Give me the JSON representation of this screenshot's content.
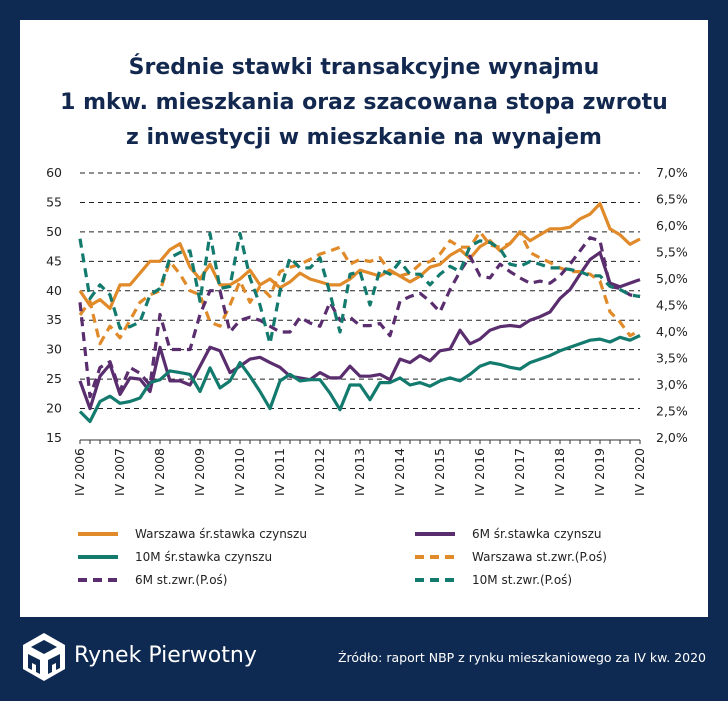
{
  "title": [
    "Średnie stawki transakcyjne wynajmu",
    "1 mkw. mieszkania oraz szacowana stopa zwrotu",
    "z inwestycji w mieszkanie na wynajem"
  ],
  "brand": "Rynek Pierwotny",
  "source": "Źródło: raport NBP z rynku mieszkaniowego za IV kw. 2020",
  "chart_data": {
    "type": "line",
    "x_tick_labels": [
      "IV 2006",
      "IV 2007",
      "IV 2008",
      "IV 2009",
      "IV 2010",
      "IV 2011",
      "IV 2012",
      "IV 2013",
      "IV 2014",
      "IV 2015",
      "IV 2016",
      "IV 2017",
      "IV 2018",
      "IV 2019",
      "IV 2020"
    ],
    "x_range": [
      "IV 2006",
      "IV 2020"
    ],
    "x_frequency": "quarterly",
    "y_left": {
      "range": [
        15,
        60
      ],
      "ticks": [
        "15",
        "20",
        "25",
        "30",
        "35",
        "40",
        "45",
        "50",
        "55",
        "60"
      ]
    },
    "y_right": {
      "range": [
        2.0,
        7.0
      ],
      "ticks": [
        "2,0%",
        "2,5%",
        "3,0%",
        "3,5%",
        "4,0%",
        "4,5%",
        "5,0%",
        "5,5%",
        "6,0%",
        "6,5%",
        "7,0%"
      ]
    },
    "grid": "horizontal dashed",
    "legend_position": "bottom",
    "series": [
      {
        "name": "Warszawa śr.stawka czynszu",
        "axis": "left",
        "style": "solid",
        "color": "#e08a2a",
        "values": [
          40,
          37.5,
          38.5,
          37,
          41,
          41,
          43,
          45,
          45,
          47,
          48,
          44,
          42,
          44.5,
          41,
          41,
          42,
          43.5,
          41,
          42,
          40.5,
          41.5,
          43,
          42,
          41.5,
          41,
          41,
          42,
          43.5,
          43,
          42.5,
          43.5,
          42.5,
          41.5,
          42.5,
          44,
          44.5,
          46,
          47,
          45.5,
          47.5,
          48.5,
          46.8,
          48,
          50,
          48.5,
          49.5,
          50.5,
          50.5,
          50.8,
          52.2,
          53,
          54.8,
          50.5,
          49.5,
          47.9,
          48.8
        ]
      },
      {
        "name": "6M śr.stawka czynszu",
        "axis": "left",
        "style": "solid",
        "color": "#5a2d6e",
        "values": [
          24.7,
          20,
          25.5,
          27.5,
          22.4,
          25.2,
          25,
          22.9,
          30.4,
          24.7,
          24.7,
          24,
          27.2,
          30.4,
          29.8,
          26.1,
          27.2,
          28.4,
          28.7,
          27.8,
          27,
          25.5,
          25.2,
          24.9,
          26.1,
          25.2,
          25.2,
          27.2,
          25.5,
          25.5,
          25.8,
          24.9,
          28.4,
          27.8,
          29,
          28.1,
          29.8,
          30.1,
          33.3,
          31,
          31.8,
          33.3,
          33.9,
          34.1,
          33.9,
          35,
          35.6,
          36.4,
          38.7,
          40.2,
          42.8,
          45.3,
          46.5,
          41.3,
          40.7,
          41.3,
          41.9
        ]
      },
      {
        "name": "10M śr.stawka czynszu",
        "axis": "left",
        "style": "solid",
        "color": "#137a6e",
        "values": [
          19.5,
          17.8,
          21.2,
          22.1,
          20.9,
          21.2,
          21.8,
          24.4,
          24.9,
          26.4,
          26.1,
          25.8,
          22.9,
          26.9,
          23.5,
          24.7,
          27.8,
          25.5,
          22.9,
          20,
          24.7,
          25.8,
          24.7,
          24.9,
          24.9,
          22.6,
          19.8,
          24,
          24,
          21.5,
          24.4,
          24.4,
          25.2,
          24,
          24.4,
          23.8,
          24.7,
          25.2,
          24.7,
          25.8,
          27.2,
          27.8,
          27.5,
          27,
          26.7,
          27.8,
          28.4,
          29,
          29.8,
          30.4,
          31,
          31.6,
          31.8,
          31.3,
          32.1,
          31.6,
          32.4
        ]
      },
      {
        "name": "Warszawa st.zwr.(P.oś)",
        "axis": "right",
        "style": "dashed",
        "color": "#e08a2a",
        "values": [
          4.32,
          4.58,
          3.78,
          4.11,
          3.89,
          4.22,
          4.56,
          4.7,
          4.78,
          5.33,
          5.09,
          4.78,
          4.7,
          4.19,
          4.11,
          4.51,
          4.96,
          4.56,
          4.86,
          4.67,
          5.14,
          5.22,
          5.28,
          5.37,
          5.47,
          5.53,
          5.6,
          5.28,
          5.37,
          5.33,
          5.4,
          5.14,
          5.06,
          5.11,
          5.28,
          5.33,
          5.47,
          5.72,
          5.6,
          5.6,
          5.89,
          5.64,
          5.6,
          5.67,
          5.89,
          5.5,
          5.4,
          5.31,
          5.21,
          5.14,
          5.14,
          5.09,
          4.96,
          4.38,
          4.19,
          3.93,
          4.03
        ]
      },
      {
        "name": "6M st.zwr.(P.oś)",
        "axis": "right",
        "style": "dashed",
        "color": "#5a2d6e",
        "values": [
          4.56,
          2.78,
          3.33,
          3.44,
          2.89,
          3.33,
          3.22,
          3.0,
          4.33,
          3.67,
          3.67,
          3.67,
          4.33,
          4.78,
          4.78,
          4.0,
          4.22,
          4.28,
          4.22,
          4.11,
          4.0,
          4.0,
          4.28,
          4.17,
          4.11,
          4.56,
          4.22,
          4.28,
          4.12,
          4.12,
          4.16,
          3.93,
          4.58,
          4.67,
          4.73,
          4.58,
          4.38,
          4.8,
          5.14,
          5.43,
          5.06,
          5.02,
          5.28,
          5.14,
          5.02,
          4.92,
          4.96,
          4.92,
          5.06,
          5.28,
          5.53,
          5.78,
          5.72,
          4.86,
          4.82,
          4.7,
          4.67
        ]
      },
      {
        "name": "10M st.zwr.(P.oś)",
        "axis": "right",
        "style": "dashed",
        "color": "#137a6e",
        "values": [
          5.76,
          4.63,
          4.89,
          4.7,
          4.07,
          4.1,
          4.19,
          4.7,
          4.82,
          5.4,
          5.5,
          5.53,
          4.58,
          5.86,
          4.82,
          4.86,
          5.86,
          5.02,
          4.51,
          3.78,
          4.77,
          5.4,
          5.21,
          5.21,
          5.4,
          4.73,
          4.0,
          5.09,
          5.14,
          4.51,
          5.18,
          5.09,
          5.33,
          5.09,
          5.09,
          4.89,
          5.09,
          5.24,
          5.14,
          5.62,
          5.72,
          5.69,
          5.57,
          5.28,
          5.24,
          5.33,
          5.28,
          5.21,
          5.21,
          5.18,
          5.14,
          5.06,
          5.06,
          4.86,
          4.8,
          4.7,
          4.67
        ]
      }
    ],
    "legend_order": [
      0,
      1,
      2,
      3,
      4,
      5
    ]
  }
}
